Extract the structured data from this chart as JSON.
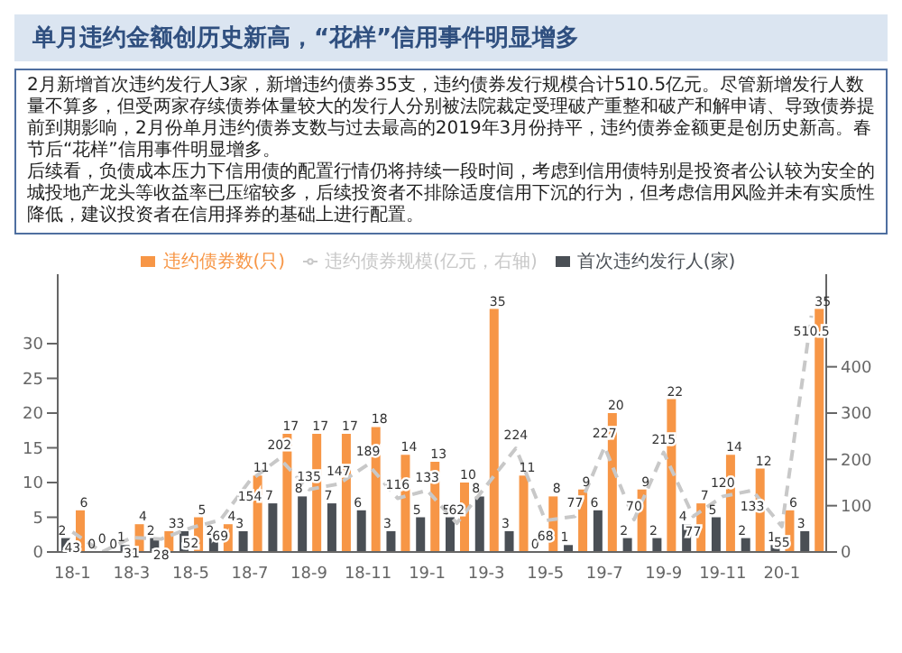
{
  "chart_data": {
    "type": "bar",
    "title": "单月违约金额创历史新高，“花样”信用事件明显增多",
    "annotations": [
      "2月新增首次违约发行人3家，新增违约债券35支，违约债券发行规模合计510.5亿元。尽管新增发行人数量不算多，但受两家存续债券体量较大的发行人分别被法院裁定受理破产重整和破产和解申请、导致债券提前到期影响，2月份单月违约债券支数与过去最高的2019年3月份持平，违约债券金额更是创历史新高。春节后“花样”信用事件明显增多。",
      "后续看，负债成本压力下信用债的配置行情仍将持续一段时间，考虑到信用债特别是投资者公认较为安全的城投地产龙头等收益率已压缩较多，后续投资者不排除适度信用下沉的行为，但考虑信用风险并未有实质性降低，建议投资者在信用择券的基础上进行配置。"
    ],
    "categories": [
      "18-1",
      null,
      "18-3",
      null,
      "18-5",
      null,
      "18-7",
      null,
      "18-9",
      null,
      "18-11",
      null,
      "19-1",
      null,
      "19-3",
      null,
      "19-5",
      null,
      "19-7",
      null,
      "19-9",
      null,
      "19-11",
      null,
      "20-1",
      null
    ],
    "series": [
      {
        "name": "首次违约发行人(家)",
        "type": "bar",
        "color": "#4a4f55",
        "values": [
          2,
          0,
          1,
          2,
          3,
          2,
          3,
          7,
          8,
          7,
          6,
          3,
          5,
          5,
          8,
          3,
          0,
          1,
          6,
          2,
          2,
          4,
          5,
          2,
          1,
          3
        ]
      },
      {
        "name": "违约债券数(只)",
        "type": "bar",
        "color": "#f79646",
        "values": [
          6,
          0,
          4,
          3,
          5,
          4,
          11,
          17,
          17,
          17,
          18,
          14,
          13,
          10,
          35,
          11,
          8,
          9,
          20,
          9,
          22,
          7,
          14,
          12,
          6,
          35
        ]
      },
      {
        "name": "违约债券规模(亿元，右轴)",
        "type": "line",
        "axis": "y2",
        "color": "#c8c8c8",
        "line_style": "dashed",
        "marker": "none",
        "values": [
          43,
          0,
          31,
          28,
          52,
          69,
          154,
          202,
          135,
          147,
          189,
          116,
          133,
          62,
          null,
          224,
          68,
          77,
          227,
          70,
          215,
          77,
          120,
          133,
          55,
          510.5
        ]
      }
    ],
    "ylim": [
      0,
      40
    ],
    "yticks": [
      0,
      5,
      10,
      15,
      20,
      25,
      30
    ],
    "y2lim": [
      0,
      600
    ],
    "y2ticks": [
      0,
      100,
      200,
      300,
      400
    ],
    "legend": "top",
    "data_labels": true
  }
}
